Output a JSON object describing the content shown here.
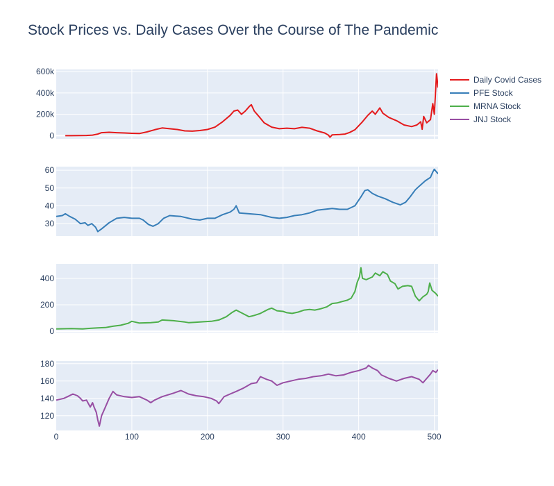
{
  "chart_data": {
    "type": "line",
    "title": "Stock Prices vs. Daily Cases Over the Course of The Pandemic",
    "legend_placement": "top-right",
    "grid": true,
    "x_axis": {
      "range": [
        0,
        505
      ],
      "ticks": [
        0,
        100,
        200,
        300,
        400,
        500
      ],
      "tick_labels": [
        "0",
        "100",
        "200",
        "300",
        "400",
        "500"
      ]
    },
    "series": [
      {
        "name": "Daily Covid Cases",
        "color": "#e41a1c",
        "ylim": [
          -30000,
          620000
        ],
        "yticks": [
          0,
          200000,
          400000,
          600000
        ],
        "ytick_labels": [
          "0",
          "200k",
          "400k",
          "600k"
        ],
        "points": [
          [
            12,
            0
          ],
          [
            20,
            0
          ],
          [
            30,
            1000
          ],
          [
            40,
            2000
          ],
          [
            48,
            5000
          ],
          [
            55,
            15000
          ],
          [
            60,
            28000
          ],
          [
            70,
            32000
          ],
          [
            80,
            28000
          ],
          [
            90,
            25000
          ],
          [
            100,
            22000
          ],
          [
            110,
            20000
          ],
          [
            120,
            35000
          ],
          [
            130,
            55000
          ],
          [
            140,
            72000
          ],
          [
            150,
            65000
          ],
          [
            160,
            58000
          ],
          [
            170,
            45000
          ],
          [
            180,
            42000
          ],
          [
            190,
            48000
          ],
          [
            200,
            58000
          ],
          [
            210,
            80000
          ],
          [
            220,
            130000
          ],
          [
            230,
            190000
          ],
          [
            235,
            230000
          ],
          [
            240,
            240000
          ],
          [
            245,
            200000
          ],
          [
            250,
            230000
          ],
          [
            255,
            270000
          ],
          [
            258,
            290000
          ],
          [
            262,
            230000
          ],
          [
            268,
            180000
          ],
          [
            275,
            120000
          ],
          [
            285,
            80000
          ],
          [
            295,
            65000
          ],
          [
            305,
            70000
          ],
          [
            315,
            65000
          ],
          [
            325,
            78000
          ],
          [
            335,
            70000
          ],
          [
            345,
            45000
          ],
          [
            355,
            25000
          ],
          [
            360,
            5000
          ],
          [
            362,
            -15000
          ],
          [
            365,
            8000
          ],
          [
            375,
            10000
          ],
          [
            382,
            15000
          ],
          [
            388,
            30000
          ],
          [
            395,
            55000
          ],
          [
            405,
            130000
          ],
          [
            412,
            190000
          ],
          [
            418,
            230000
          ],
          [
            422,
            200000
          ],
          [
            428,
            260000
          ],
          [
            432,
            210000
          ],
          [
            440,
            170000
          ],
          [
            450,
            140000
          ],
          [
            460,
            100000
          ],
          [
            470,
            85000
          ],
          [
            477,
            100000
          ],
          [
            482,
            130000
          ],
          [
            484,
            60000
          ],
          [
            486,
            180000
          ],
          [
            490,
            120000
          ],
          [
            495,
            150000
          ],
          [
            498,
            300000
          ],
          [
            500,
            200000
          ],
          [
            503,
            580000
          ],
          [
            505,
            450000
          ]
        ]
      },
      {
        "name": "PFE Stock",
        "color": "#377eb8",
        "ylim": [
          23,
          62
        ],
        "yticks": [
          30,
          40,
          50,
          60
        ],
        "ytick_labels": [
          "30",
          "40",
          "50",
          "60"
        ],
        "points": [
          [
            0,
            34
          ],
          [
            8,
            34.5
          ],
          [
            12,
            35.5
          ],
          [
            18,
            34
          ],
          [
            25,
            32.5
          ],
          [
            32,
            30
          ],
          [
            38,
            30.5
          ],
          [
            42,
            29
          ],
          [
            47,
            30
          ],
          [
            52,
            28
          ],
          [
            55,
            25.5
          ],
          [
            60,
            27
          ],
          [
            70,
            30.5
          ],
          [
            80,
            33
          ],
          [
            90,
            33.5
          ],
          [
            100,
            33
          ],
          [
            110,
            33
          ],
          [
            115,
            32
          ],
          [
            122,
            29.5
          ],
          [
            128,
            28.5
          ],
          [
            135,
            30
          ],
          [
            142,
            33
          ],
          [
            150,
            34.5
          ],
          [
            165,
            34
          ],
          [
            180,
            32.5
          ],
          [
            190,
            32
          ],
          [
            200,
            33
          ],
          [
            210,
            33
          ],
          [
            220,
            35
          ],
          [
            230,
            36.5
          ],
          [
            235,
            38
          ],
          [
            238,
            40
          ],
          [
            242,
            36
          ],
          [
            255,
            35.5
          ],
          [
            270,
            35
          ],
          [
            285,
            33.5
          ],
          [
            295,
            33
          ],
          [
            305,
            33.5
          ],
          [
            315,
            34.5
          ],
          [
            325,
            35
          ],
          [
            335,
            36
          ],
          [
            345,
            37.5
          ],
          [
            355,
            38
          ],
          [
            365,
            38.5
          ],
          [
            375,
            38
          ],
          [
            385,
            38
          ],
          [
            395,
            40
          ],
          [
            403,
            45
          ],
          [
            408,
            48.5
          ],
          [
            412,
            49
          ],
          [
            418,
            47
          ],
          [
            425,
            45.5
          ],
          [
            435,
            44
          ],
          [
            445,
            42
          ],
          [
            455,
            40.5
          ],
          [
            462,
            42
          ],
          [
            468,
            45
          ],
          [
            475,
            49
          ],
          [
            480,
            51
          ],
          [
            488,
            54
          ],
          [
            495,
            56
          ],
          [
            498,
            59
          ],
          [
            500,
            60.5
          ],
          [
            505,
            58
          ]
        ]
      },
      {
        "name": "MRNA Stock",
        "color": "#4daf4a",
        "ylim": [
          -10,
          510
        ],
        "yticks": [
          0,
          200,
          400
        ],
        "ytick_labels": [
          "0",
          "200",
          "400"
        ],
        "points": [
          [
            0,
            18
          ],
          [
            20,
            20
          ],
          [
            35,
            18
          ],
          [
            45,
            22
          ],
          [
            55,
            25
          ],
          [
            65,
            28
          ],
          [
            75,
            38
          ],
          [
            85,
            45
          ],
          [
            95,
            60
          ],
          [
            100,
            75
          ],
          [
            110,
            62
          ],
          [
            125,
            65
          ],
          [
            135,
            70
          ],
          [
            140,
            85
          ],
          [
            155,
            80
          ],
          [
            170,
            70
          ],
          [
            175,
            65
          ],
          [
            185,
            68
          ],
          [
            195,
            72
          ],
          [
            205,
            75
          ],
          [
            215,
            85
          ],
          [
            225,
            110
          ],
          [
            232,
            140
          ],
          [
            238,
            160
          ],
          [
            248,
            130
          ],
          [
            255,
            110
          ],
          [
            262,
            120
          ],
          [
            270,
            135
          ],
          [
            280,
            165
          ],
          [
            285,
            175
          ],
          [
            292,
            155
          ],
          [
            300,
            150
          ],
          [
            305,
            140
          ],
          [
            312,
            135
          ],
          [
            320,
            145
          ],
          [
            328,
            160
          ],
          [
            335,
            165
          ],
          [
            342,
            160
          ],
          [
            350,
            170
          ],
          [
            358,
            185
          ],
          [
            365,
            210
          ],
          [
            372,
            215
          ],
          [
            378,
            225
          ],
          [
            385,
            235
          ],
          [
            390,
            250
          ],
          [
            395,
            300
          ],
          [
            398,
            370
          ],
          [
            401,
            410
          ],
          [
            403,
            480
          ],
          [
            405,
            400
          ],
          [
            410,
            390
          ],
          [
            418,
            410
          ],
          [
            422,
            440
          ],
          [
            428,
            420
          ],
          [
            432,
            450
          ],
          [
            438,
            430
          ],
          [
            442,
            380
          ],
          [
            448,
            360
          ],
          [
            452,
            320
          ],
          [
            458,
            340
          ],
          [
            465,
            345
          ],
          [
            470,
            340
          ],
          [
            475,
            265
          ],
          [
            480,
            230
          ],
          [
            485,
            260
          ],
          [
            490,
            280
          ],
          [
            492,
            300
          ],
          [
            494,
            365
          ],
          [
            497,
            310
          ],
          [
            502,
            285
          ],
          [
            505,
            265
          ]
        ]
      },
      {
        "name": "JNJ Stock",
        "color": "#984ea3",
        "ylim": [
          103,
          183
        ],
        "yticks": [
          120,
          140,
          160,
          180
        ],
        "ytick_labels": [
          "120",
          "140",
          "160",
          "180"
        ],
        "points": [
          [
            0,
            138
          ],
          [
            10,
            140
          ],
          [
            15,
            142
          ],
          [
            22,
            145
          ],
          [
            28,
            143
          ],
          [
            32,
            140
          ],
          [
            35,
            137
          ],
          [
            40,
            138
          ],
          [
            45,
            130
          ],
          [
            48,
            135
          ],
          [
            50,
            130
          ],
          [
            53,
            124
          ],
          [
            55,
            115
          ],
          [
            57,
            108
          ],
          [
            60,
            120
          ],
          [
            65,
            130
          ],
          [
            70,
            140
          ],
          [
            75,
            148
          ],
          [
            80,
            144
          ],
          [
            90,
            142
          ],
          [
            100,
            141
          ],
          [
            110,
            142
          ],
          [
            120,
            138
          ],
          [
            125,
            135
          ],
          [
            130,
            138
          ],
          [
            140,
            142
          ],
          [
            155,
            146
          ],
          [
            165,
            149
          ],
          [
            175,
            145
          ],
          [
            185,
            143
          ],
          [
            195,
            142
          ],
          [
            205,
            140
          ],
          [
            212,
            137
          ],
          [
            215,
            134
          ],
          [
            222,
            142
          ],
          [
            230,
            145
          ],
          [
            238,
            148
          ],
          [
            248,
            152
          ],
          [
            258,
            157
          ],
          [
            265,
            158
          ],
          [
            270,
            165
          ],
          [
            278,
            162
          ],
          [
            285,
            160
          ],
          [
            292,
            155
          ],
          [
            300,
            158
          ],
          [
            310,
            160
          ],
          [
            320,
            162
          ],
          [
            330,
            163
          ],
          [
            340,
            165
          ],
          [
            350,
            166
          ],
          [
            360,
            168
          ],
          [
            370,
            166
          ],
          [
            380,
            167
          ],
          [
            390,
            170
          ],
          [
            400,
            172
          ],
          [
            410,
            175
          ],
          [
            413,
            178
          ],
          [
            418,
            175
          ],
          [
            425,
            172
          ],
          [
            430,
            167
          ],
          [
            440,
            163
          ],
          [
            450,
            160
          ],
          [
            460,
            163
          ],
          [
            470,
            165
          ],
          [
            480,
            162
          ],
          [
            485,
            158
          ],
          [
            490,
            163
          ],
          [
            495,
            168
          ],
          [
            498,
            172
          ],
          [
            502,
            170
          ],
          [
            505,
            173
          ]
        ]
      }
    ]
  }
}
